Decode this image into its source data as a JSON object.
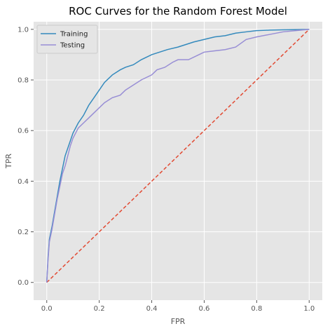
{
  "chart_data": {
    "type": "line",
    "title": "ROC Curves for the Random Forest Model",
    "xlabel": "FPR",
    "ylabel": "TPR",
    "xlim": [
      -0.05,
      1.05
    ],
    "ylim": [
      -0.07,
      1.03
    ],
    "xticks": [
      "0.0",
      "0.2",
      "0.4",
      "0.6",
      "0.8",
      "1.0"
    ],
    "yticks": [
      "0.0",
      "0.2",
      "0.4",
      "0.6",
      "0.8",
      "1.0"
    ],
    "grid": true,
    "legend_position": "top-left",
    "style": {
      "background": "#e5e5e5",
      "grid_color": "#ffffff",
      "tick_color": "#555555"
    },
    "series": [
      {
        "name": "Training",
        "color": "#348abd",
        "x": [
          0.0,
          0.005,
          0.01,
          0.02,
          0.03,
          0.04,
          0.05,
          0.06,
          0.07,
          0.08,
          0.09,
          0.1,
          0.12,
          0.14,
          0.16,
          0.18,
          0.2,
          0.22,
          0.25,
          0.28,
          0.3,
          0.33,
          0.36,
          0.4,
          0.43,
          0.46,
          0.5,
          0.53,
          0.56,
          0.6,
          0.64,
          0.68,
          0.72,
          0.76,
          0.8,
          0.85,
          0.9,
          0.95,
          1.0
        ],
        "y": [
          0.0,
          0.1,
          0.17,
          0.22,
          0.28,
          0.34,
          0.4,
          0.45,
          0.5,
          0.53,
          0.56,
          0.59,
          0.63,
          0.66,
          0.7,
          0.73,
          0.76,
          0.79,
          0.82,
          0.84,
          0.85,
          0.86,
          0.88,
          0.9,
          0.91,
          0.92,
          0.93,
          0.94,
          0.95,
          0.96,
          0.97,
          0.975,
          0.985,
          0.99,
          0.995,
          0.997,
          0.998,
          0.999,
          1.0
        ]
      },
      {
        "name": "Testing",
        "color": "#988ed5",
        "x": [
          0.0,
          0.005,
          0.01,
          0.02,
          0.03,
          0.04,
          0.05,
          0.06,
          0.07,
          0.08,
          0.09,
          0.1,
          0.12,
          0.14,
          0.16,
          0.18,
          0.2,
          0.22,
          0.25,
          0.28,
          0.3,
          0.33,
          0.36,
          0.4,
          0.42,
          0.45,
          0.48,
          0.5,
          0.54,
          0.58,
          0.6,
          0.64,
          0.68,
          0.72,
          0.76,
          0.8,
          0.85,
          0.9,
          0.95,
          1.0
        ],
        "y": [
          0.0,
          0.09,
          0.16,
          0.21,
          0.27,
          0.33,
          0.38,
          0.43,
          0.46,
          0.5,
          0.54,
          0.57,
          0.61,
          0.63,
          0.65,
          0.67,
          0.69,
          0.71,
          0.73,
          0.74,
          0.76,
          0.78,
          0.8,
          0.82,
          0.84,
          0.85,
          0.87,
          0.88,
          0.88,
          0.9,
          0.91,
          0.915,
          0.92,
          0.93,
          0.96,
          0.97,
          0.98,
          0.99,
          0.995,
          1.0
        ]
      },
      {
        "name": "",
        "color": "#e24a33",
        "dashed": true,
        "x": [
          0.0,
          1.0
        ],
        "y": [
          0.0,
          1.0
        ]
      }
    ]
  }
}
